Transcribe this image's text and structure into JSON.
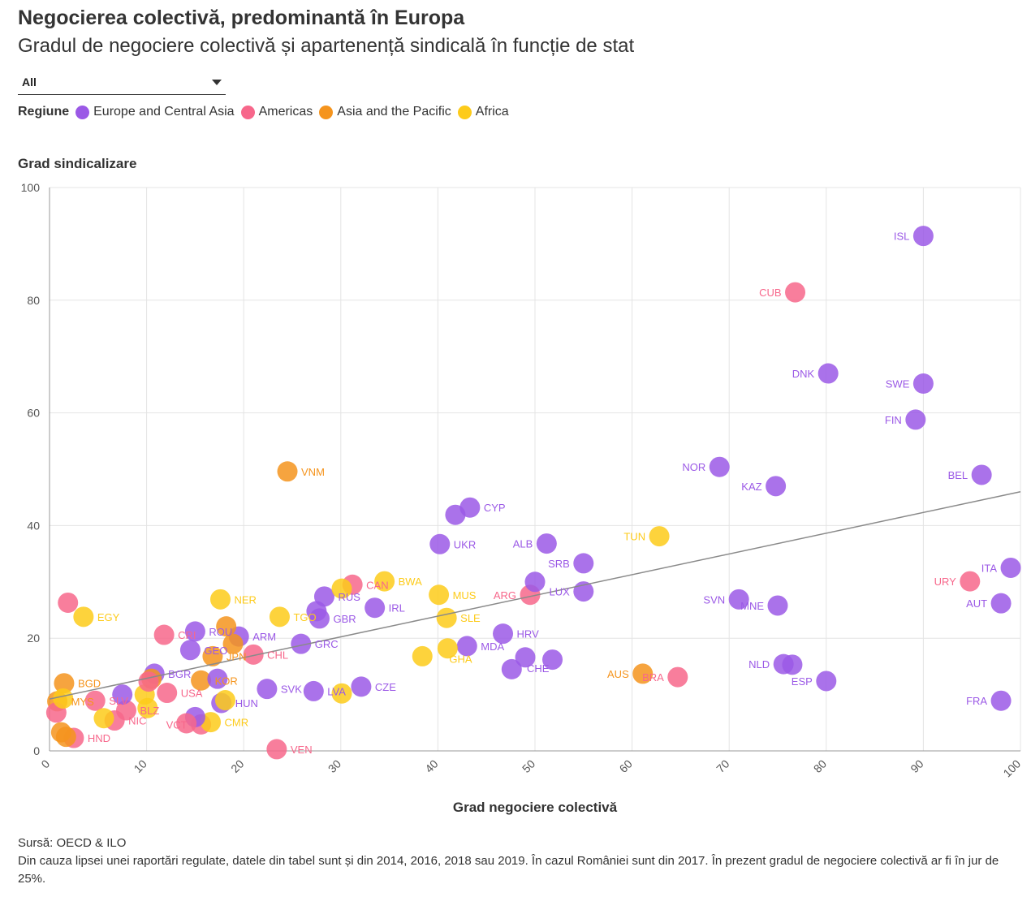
{
  "title": "Negocierea colectivă, predominantă în Europa",
  "subtitle": "Gradul de negociere colectivă și apartenență sindicală în funcție de stat",
  "filter": {
    "selected": "All"
  },
  "legend": {
    "title": "Regiune",
    "items": [
      {
        "label": "Europe and Central Asia",
        "color": "#9b59e6"
      },
      {
        "label": "Americas",
        "color": "#f7678b"
      },
      {
        "label": "Asia and the Pacific",
        "color": "#f5941d"
      },
      {
        "label": "Africa",
        "color": "#fdcb1a"
      }
    ]
  },
  "source": "Sursă: OECD & ILO",
  "note": "Din cauza lipsei unei raportări regulate, datele din tabel sunt și din 2014, 2016, 2018 sau 2019. În cazul României sunt din 2017. În prezent gradul de negociere colectivă ar fi în jur de 25%.",
  "chart_data": {
    "type": "scatter",
    "xlabel": "Grad negociere colectivă",
    "ylabel": "Grad sindicalizare",
    "xlim": [
      0,
      100
    ],
    "ylim": [
      0,
      100
    ],
    "xticks": [
      0,
      10,
      20,
      30,
      40,
      50,
      60,
      70,
      80,
      90,
      100
    ],
    "yticks": [
      0,
      20,
      40,
      60,
      80,
      100
    ],
    "grid": true,
    "trendline": {
      "x": [
        0,
        100
      ],
      "y": [
        9.2,
        46
      ]
    },
    "region_colors": {
      "Europe and Central Asia": "#9b59e6",
      "Americas": "#f7678b",
      "Asia and the Pacific": "#f5941d",
      "Africa": "#fdcb1a"
    },
    "points": [
      {
        "code": "ISL",
        "region": "Europe and Central Asia",
        "x": 90,
        "y": 91.4,
        "label": "left"
      },
      {
        "code": "CUB",
        "region": "Americas",
        "x": 76.8,
        "y": 81.4,
        "label": "left"
      },
      {
        "code": "DNK",
        "region": "Europe and Central Asia",
        "x": 80.2,
        "y": 67,
        "label": "left"
      },
      {
        "code": "SWE",
        "region": "Europe and Central Asia",
        "x": 90,
        "y": 65.2,
        "label": "left"
      },
      {
        "code": "FIN",
        "region": "Europe and Central Asia",
        "x": 89.2,
        "y": 58.8,
        "label": "left"
      },
      {
        "code": "NOR",
        "region": "Europe and Central Asia",
        "x": 69,
        "y": 50.4,
        "label": "left"
      },
      {
        "code": "BEL",
        "region": "Europe and Central Asia",
        "x": 96,
        "y": 49,
        "label": "left"
      },
      {
        "code": "KAZ",
        "region": "Europe and Central Asia",
        "x": 74.8,
        "y": 47,
        "label": "left"
      },
      {
        "code": "VNM",
        "region": "Asia and the Pacific",
        "x": 24.5,
        "y": 49.6,
        "label": "right"
      },
      {
        "code": "CYP",
        "region": "Europe and Central Asia",
        "x": 43.3,
        "y": 43.2,
        "label": "right"
      },
      {
        "code": "UKR",
        "region": "Europe and Central Asia",
        "x": 40.2,
        "y": 36.7,
        "label": "right"
      },
      {
        "code": "TUN",
        "region": "Africa",
        "x": 62.8,
        "y": 38.1,
        "label": "left"
      },
      {
        "code": "ALB",
        "region": "Europe and Central Asia",
        "x": 51.2,
        "y": 36.8,
        "label": "left"
      },
      {
        "code": "SRB",
        "region": "Europe and Central Asia",
        "x": 55,
        "y": 33.3,
        "label": "left"
      },
      {
        "code": "ITA",
        "region": "Europe and Central Asia",
        "x": 99,
        "y": 32.5,
        "label": "left"
      },
      {
        "code": "URY",
        "region": "Americas",
        "x": 94.8,
        "y": 30.1,
        "label": "left"
      },
      {
        "code": "LUX",
        "region": "Europe and Central Asia",
        "x": 55,
        "y": 28.3,
        "label": "left"
      },
      {
        "code": "ARG",
        "region": "Americas",
        "x": 49.5,
        "y": 27.7,
        "label": "left"
      },
      {
        "code": "SVN",
        "region": "Europe and Central Asia",
        "x": 71,
        "y": 26.9,
        "label": "left"
      },
      {
        "code": "MNE",
        "region": "Europe and Central Asia",
        "x": 75,
        "y": 25.8,
        "label": "left"
      },
      {
        "code": "AUT",
        "region": "Europe and Central Asia",
        "x": 98,
        "y": 26.2,
        "label": "left"
      },
      {
        "code": "BWA",
        "region": "Africa",
        "x": 34.5,
        "y": 30.1,
        "label": "right"
      },
      {
        "code": "CAN",
        "region": "Americas",
        "x": 31.2,
        "y": 29.5,
        "label": "right"
      },
      {
        "code": "MUS",
        "region": "Africa",
        "x": 40.1,
        "y": 27.7,
        "label": "right"
      },
      {
        "code": "RUS",
        "region": "Europe and Central Asia",
        "x": 28.3,
        "y": 27.4,
        "label": "right"
      },
      {
        "code": "NER",
        "region": "Africa",
        "x": 17.6,
        "y": 26.9,
        "label": "right"
      },
      {
        "code": "IRL",
        "region": "Europe and Central Asia",
        "x": 33.5,
        "y": 25.4,
        "label": "right"
      },
      {
        "code": "SLE",
        "region": "Africa",
        "x": 40.9,
        "y": 23.6,
        "label": "right"
      },
      {
        "code": "TGO",
        "region": "Africa",
        "x": 23.7,
        "y": 23.8,
        "label": "right"
      },
      {
        "code": "GBR",
        "region": "Europe and Central Asia",
        "x": 27.8,
        "y": 23.5,
        "label": "right"
      },
      {
        "code": "EGY",
        "region": "Africa",
        "x": 3.5,
        "y": 23.8,
        "label": "right"
      },
      {
        "code": "HRV",
        "region": "Europe and Central Asia",
        "x": 46.7,
        "y": 20.8,
        "label": "right"
      },
      {
        "code": "CRI",
        "region": "Americas",
        "x": 11.8,
        "y": 20.6,
        "label": "right"
      },
      {
        "code": "ROU",
        "region": "Europe and Central Asia",
        "x": 15,
        "y": 21.2,
        "label": "right"
      },
      {
        "code": "ARM",
        "region": "Europe and Central Asia",
        "x": 19.5,
        "y": 20.3,
        "label": "right"
      },
      {
        "code": "GRC",
        "region": "Europe and Central Asia",
        "x": 25.9,
        "y": 19,
        "label": "right"
      },
      {
        "code": "MDA",
        "region": "Europe and Central Asia",
        "x": 43,
        "y": 18.6,
        "label": "right"
      },
      {
        "code": "GHA",
        "region": "Africa",
        "x": 41,
        "y": 18.2,
        "label": "below-right"
      },
      {
        "code": "GEO",
        "region": "Europe and Central Asia",
        "x": 14.5,
        "y": 17.9,
        "label": "right"
      },
      {
        "code": "JPN",
        "region": "Asia and the Pacific",
        "x": 16.8,
        "y": 16.8,
        "label": "right"
      },
      {
        "code": "CHL",
        "region": "Americas",
        "x": 21,
        "y": 17.1,
        "label": "right"
      },
      {
        "code": "CHE",
        "region": "Europe and Central Asia",
        "x": 49,
        "y": 16.6,
        "label": "below-right"
      },
      {
        "code": "AUS",
        "region": "Asia and the Pacific",
        "x": 61.1,
        "y": 13.7,
        "label": "left"
      },
      {
        "code": "BRA",
        "region": "Americas",
        "x": 64.7,
        "y": 13.1,
        "label": "left"
      },
      {
        "code": "NLD",
        "region": "Europe and Central Asia",
        "x": 75.6,
        "y": 15.4,
        "label": "left"
      },
      {
        "code": "ESP",
        "region": "Europe and Central Asia",
        "x": 80,
        "y": 12.4,
        "label": "left"
      },
      {
        "code": "FRA",
        "region": "Europe and Central Asia",
        "x": 98,
        "y": 8.9,
        "label": "left"
      },
      {
        "code": "BGR",
        "region": "Europe and Central Asia",
        "x": 10.8,
        "y": 13.7,
        "label": "right"
      },
      {
        "code": "KOR",
        "region": "Asia and the Pacific",
        "x": 15.6,
        "y": 12.5,
        "label": "right"
      },
      {
        "code": "SVK",
        "region": "Europe and Central Asia",
        "x": 22.4,
        "y": 11,
        "label": "right"
      },
      {
        "code": "CZE",
        "region": "Europe and Central Asia",
        "x": 32.1,
        "y": 11.4,
        "label": "right"
      },
      {
        "code": "LVA",
        "region": "Europe and Central Asia",
        "x": 27.2,
        "y": 10.6,
        "label": "right"
      },
      {
        "code": "USA",
        "region": "Americas",
        "x": 12.1,
        "y": 10.3,
        "label": "right"
      },
      {
        "code": "BGD",
        "region": "Asia and the Pacific",
        "x": 1.5,
        "y": 12,
        "label": "right"
      },
      {
        "code": "MYS",
        "region": "Asia and the Pacific",
        "x": 0.8,
        "y": 8.8,
        "label": "right"
      },
      {
        "code": "SLV",
        "region": "Americas",
        "x": 4.7,
        "y": 8.9,
        "label": "right"
      },
      {
        "code": "HUN",
        "region": "Europe and Central Asia",
        "x": 17.7,
        "y": 8.5,
        "label": "right"
      },
      {
        "code": "BLZ",
        "region": "Americas",
        "x": 7.9,
        "y": 7.2,
        "label": "right"
      },
      {
        "code": "NIC",
        "region": "Americas",
        "x": 6.7,
        "y": 5.4,
        "label": "right"
      },
      {
        "code": "VCT",
        "region": "Americas",
        "x": 15.6,
        "y": 4.7,
        "label": "left"
      },
      {
        "code": "CMR",
        "region": "Africa",
        "x": 16.6,
        "y": 5.1,
        "label": "right"
      },
      {
        "code": "HND",
        "region": "Americas",
        "x": 2.5,
        "y": 2.3,
        "label": "right"
      },
      {
        "code": "VEN",
        "region": "Americas",
        "x": 23.4,
        "y": 0.3,
        "label": "right"
      },
      {
        "code": "",
        "region": "Asia and the Pacific",
        "x": 1.2,
        "y": 3.3
      },
      {
        "code": "",
        "region": "Asia and the Pacific",
        "x": 1.7,
        "y": 2.5
      },
      {
        "code": "",
        "region": "Americas",
        "x": 0.7,
        "y": 6.8
      },
      {
        "code": "",
        "region": "Americas",
        "x": 1.9,
        "y": 26.3
      },
      {
        "code": "",
        "region": "Europe and Central Asia",
        "x": 7.5,
        "y": 10
      },
      {
        "code": "",
        "region": "Africa",
        "x": 5.6,
        "y": 5.8
      },
      {
        "code": "",
        "region": "Africa",
        "x": 9.8,
        "y": 10
      },
      {
        "code": "",
        "region": "Africa",
        "x": 10.1,
        "y": 7.6
      },
      {
        "code": "",
        "region": "Asia and the Pacific",
        "x": 10.5,
        "y": 12.8
      },
      {
        "code": "",
        "region": "Americas",
        "x": 10.2,
        "y": 12.3
      },
      {
        "code": "",
        "region": "Europe and Central Asia",
        "x": 15,
        "y": 6
      },
      {
        "code": "",
        "region": "Americas",
        "x": 14.1,
        "y": 4.9
      },
      {
        "code": "",
        "region": "Europe and Central Asia",
        "x": 17.3,
        "y": 12.8
      },
      {
        "code": "",
        "region": "Asia and the Pacific",
        "x": 18.2,
        "y": 22.1
      },
      {
        "code": "",
        "region": "Asia and the Pacific",
        "x": 18.9,
        "y": 19
      },
      {
        "code": "",
        "region": "Africa",
        "x": 18.1,
        "y": 9
      },
      {
        "code": "",
        "region": "Africa",
        "x": 30.1,
        "y": 28.8
      },
      {
        "code": "",
        "region": "Africa",
        "x": 30.1,
        "y": 10.2
      },
      {
        "code": "",
        "region": "Africa",
        "x": 38.4,
        "y": 16.8
      },
      {
        "code": "",
        "region": "Europe and Central Asia",
        "x": 41.8,
        "y": 41.9
      },
      {
        "code": "",
        "region": "Europe and Central Asia",
        "x": 50,
        "y": 30
      },
      {
        "code": "",
        "region": "Europe and Central Asia",
        "x": 47.6,
        "y": 14.5
      },
      {
        "code": "",
        "region": "Europe and Central Asia",
        "x": 51.8,
        "y": 16.2
      },
      {
        "code": "",
        "region": "Europe and Central Asia",
        "x": 76.5,
        "y": 15.3
      },
      {
        "code": "",
        "region": "Africa",
        "x": 1.4,
        "y": 9.3
      },
      {
        "code": "",
        "region": "Europe and Central Asia",
        "x": 27.5,
        "y": 24.8
      }
    ]
  }
}
